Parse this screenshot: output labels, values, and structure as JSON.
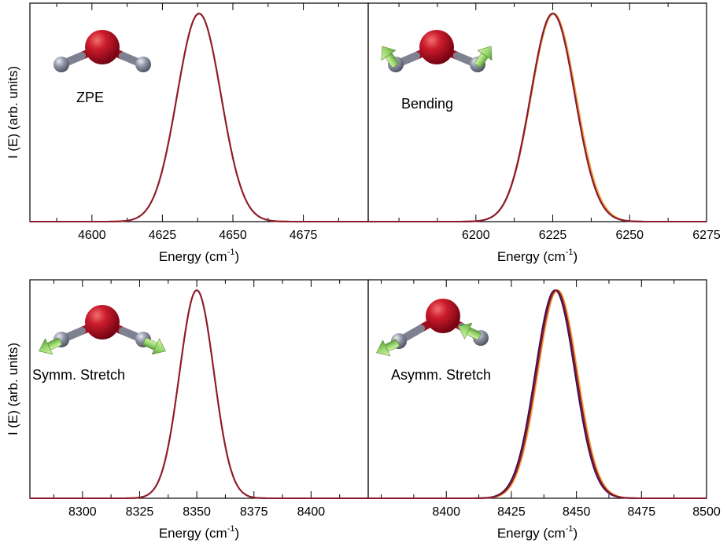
{
  "chart_data": [
    {
      "type": "line",
      "panel_label": "ZPE",
      "xlabel": "Energy (cm",
      "xlabel_sup": "-1",
      "xlabel_close": ")",
      "ylabel": "I (E) (arb. units)",
      "xlim": [
        4578,
        4698
      ],
      "ylim": [
        0,
        1.05
      ],
      "xticks": [
        4600,
        4625,
        4650,
        4675
      ],
      "xtick_labels": [
        "4600",
        "4625",
        "4650",
        "4675"
      ],
      "grid": false,
      "molecule_arrows": "none",
      "series": [
        {
          "center": 4638,
          "sigma": 7.8,
          "amplitude": 1.0,
          "color": "#3c1054"
        },
        {
          "center": 4638,
          "sigma": 7.8,
          "amplitude": 1.0,
          "color": "#f2a23a"
        },
        {
          "center": 4638,
          "sigma": 7.8,
          "amplitude": 1.0,
          "color": "#8e1a2e"
        }
      ]
    },
    {
      "type": "line",
      "panel_label": "Bending",
      "xlabel": "Energy (cm",
      "xlabel_sup": "-1",
      "xlabel_close": ")",
      "ylabel": "",
      "xlim": [
        6165,
        6275
      ],
      "ylim": [
        0,
        1.05
      ],
      "xticks": [
        6200,
        6225,
        6250,
        6275
      ],
      "xtick_labels": [
        "6200",
        "6225",
        "6250",
        "6275"
      ],
      "grid": false,
      "molecule_arrows": "bend",
      "series": [
        {
          "center": 6225.3,
          "sigma": 7.3,
          "amplitude": 1.0,
          "color": "#f2a23a"
        },
        {
          "center": 6225,
          "sigma": 7.2,
          "amplitude": 1.0,
          "color": "#3c1054"
        },
        {
          "center": 6225,
          "sigma": 7.2,
          "amplitude": 1.0,
          "color": "#8e1a2e"
        }
      ]
    },
    {
      "type": "line",
      "panel_label": "Symm. Stretch",
      "xlabel": "Energy (cm",
      "xlabel_sup": "-1",
      "xlabel_close": ")",
      "ylabel": "I (E) (arb. units)",
      "xlim": [
        8277,
        8425
      ],
      "ylim": [
        0,
        1.05
      ],
      "xticks": [
        8300,
        8325,
        8350,
        8375,
        8400
      ],
      "xtick_labels": [
        "8300",
        "8325",
        "8350",
        "8375",
        "8400"
      ],
      "grid": false,
      "molecule_arrows": "symmetric",
      "series": [
        {
          "center": 8350,
          "sigma": 7.5,
          "amplitude": 1.0,
          "color": "#3c1054"
        },
        {
          "center": 8350,
          "sigma": 7.5,
          "amplitude": 1.0,
          "color": "#f2a23a"
        },
        {
          "center": 8350,
          "sigma": 7.5,
          "amplitude": 1.0,
          "color": "#8e1a2e"
        }
      ]
    },
    {
      "type": "line",
      "panel_label": "Asymm. Stretch",
      "xlabel": "Energy (cm",
      "xlabel_sup": "-1",
      "xlabel_close": ")",
      "ylabel": "",
      "xlim": [
        8370,
        8500
      ],
      "ylim": [
        0,
        1.05
      ],
      "xticks": [
        8400,
        8425,
        8450,
        8475,
        8500
      ],
      "xtick_labels": [
        "8400",
        "8425",
        "8450",
        "8475",
        "8500"
      ],
      "grid": false,
      "molecule_arrows": "asymmetric",
      "series": [
        {
          "center": 8442.8,
          "sigma": 7.6,
          "amplitude": 1.0,
          "color": "#f2a23a"
        },
        {
          "center": 8441.8,
          "sigma": 7.6,
          "amplitude": 1.0,
          "color": "#3c1054"
        },
        {
          "center": 8442.3,
          "sigma": 7.6,
          "amplitude": 1.0,
          "color": "#8e1a2e"
        }
      ]
    }
  ]
}
